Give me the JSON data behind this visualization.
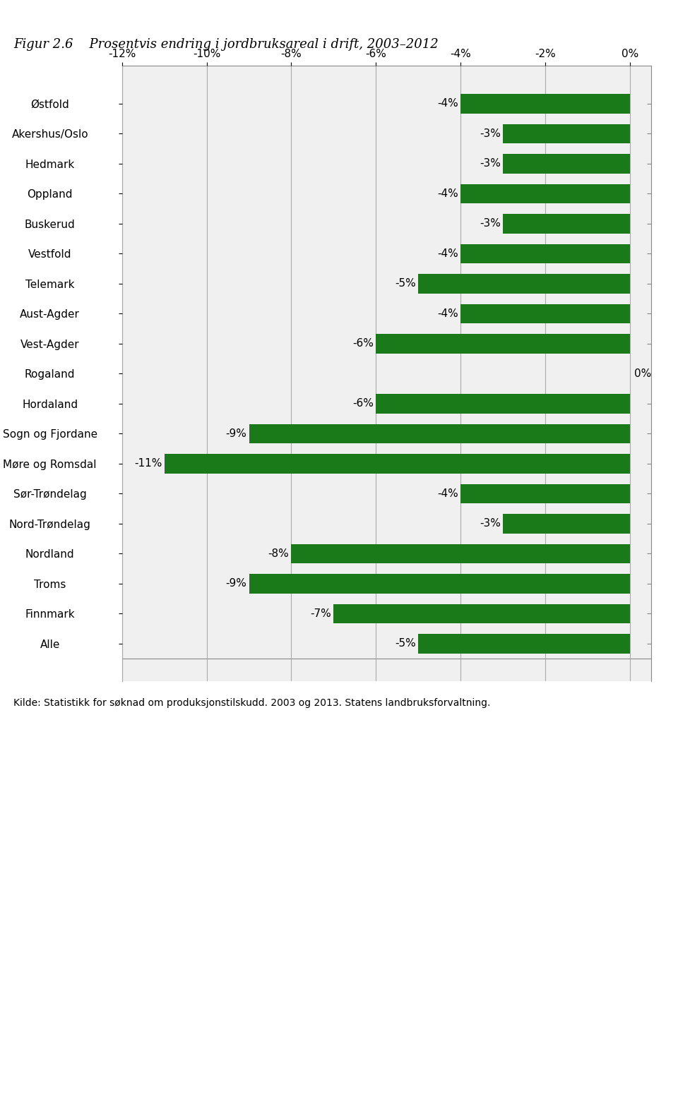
{
  "title": "Figur 2.6    Prosentvis endring i jordbruksareal i drift, 2003–2012",
  "categories": [
    "Østfold",
    "Akershus/Oslo",
    "Hedmark",
    "Oppland",
    "Buskerud",
    "Vestfold",
    "Telemark",
    "Aust-Agder",
    "Vest-Agder",
    "Rogaland",
    "Hordaland",
    "Sogn og Fjordane",
    "Møre og Romsdal",
    "Sør-Trøndelag",
    "Nord-Trøndelag",
    "Nordland",
    "Troms",
    "Finnmark",
    "Alle"
  ],
  "values": [
    -4,
    -3,
    -3,
    -4,
    -3,
    -4,
    -5,
    -4,
    -6,
    0,
    -6,
    -9,
    -11,
    -4,
    -3,
    -8,
    -9,
    -7,
    -5
  ],
  "bar_color": "#1a7a1a",
  "label_color": "#000000",
  "xlim": [
    -12,
    0.5
  ],
  "xticks": [
    -12,
    -10,
    -8,
    -6,
    -4,
    -2,
    0
  ],
  "xticklabels": [
    "-12%",
    "-10%",
    "-8%",
    "-6%",
    "-4%",
    "-2%",
    "0%"
  ],
  "grid_color": "#aaaaaa",
  "bg_color": "#ffffff",
  "chart_bg": "#f0f0f0",
  "caption": "Kilde: Statistikk for søknad om produksjonstilskudd. 2003 og 2013. Statens landbruksforvaltning.",
  "title_fontsize": 13,
  "tick_fontsize": 11,
  "label_fontsize": 11,
  "caption_fontsize": 10,
  "bar_height": 0.65
}
